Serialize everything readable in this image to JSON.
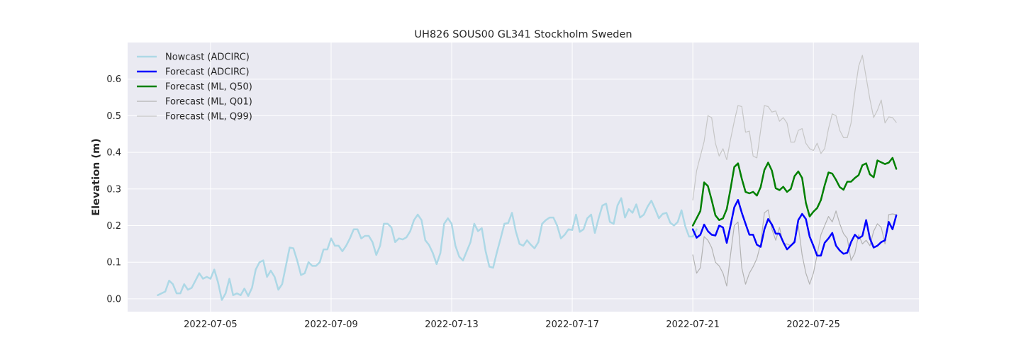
{
  "chart_data": {
    "type": "line",
    "title": "UH826 SOUS00 GL341 Stockholm Sweden",
    "xlabel": "",
    "ylabel": "Elevation (m)",
    "xlim": [
      "2022-07-02T06:00",
      "2022-07-28T12:00"
    ],
    "ylim": [
      -0.035,
      0.7
    ],
    "x_ticks": [
      "2022-07-05",
      "2022-07-09",
      "2022-07-13",
      "2022-07-17",
      "2022-07-21",
      "2022-07-25"
    ],
    "y_ticks": [
      0.0,
      0.1,
      0.2,
      0.3,
      0.4,
      0.5,
      0.6
    ],
    "y_tick_labels": [
      "0.0",
      "0.1",
      "0.2",
      "0.3",
      "0.4",
      "0.5",
      "0.6"
    ],
    "grid": true,
    "legend_position": "top-left",
    "background_color": "#eaeaf2",
    "series": [
      {
        "name": "Nowcast (ADCIRC)",
        "color": "#add8e6",
        "x_start": "2022-07-03T06:00",
        "x_step_hours": 3,
        "values": [
          0.01,
          0.015,
          0.02,
          0.05,
          0.04,
          0.015,
          0.015,
          0.04,
          0.025,
          0.03,
          0.05,
          0.07,
          0.055,
          0.06,
          0.055,
          0.08,
          0.045,
          -0.003,
          0.015,
          0.055,
          0.01,
          0.015,
          0.01,
          0.028,
          0.008,
          0.03,
          0.08,
          0.1,
          0.105,
          0.06,
          0.077,
          0.06,
          0.025,
          0.04,
          0.09,
          0.14,
          0.138,
          0.105,
          0.065,
          0.07,
          0.1,
          0.09,
          0.09,
          0.1,
          0.135,
          0.135,
          0.165,
          0.145,
          0.145,
          0.13,
          0.145,
          0.165,
          0.19,
          0.19,
          0.165,
          0.172,
          0.172,
          0.155,
          0.12,
          0.145,
          0.205,
          0.205,
          0.195,
          0.155,
          0.165,
          0.162,
          0.168,
          0.185,
          0.215,
          0.23,
          0.215,
          0.16,
          0.147,
          0.125,
          0.095,
          0.125,
          0.205,
          0.22,
          0.205,
          0.145,
          0.115,
          0.105,
          0.13,
          0.155,
          0.205,
          0.185,
          0.193,
          0.13,
          0.088,
          0.085,
          0.127,
          0.165,
          0.205,
          0.207,
          0.235,
          0.185,
          0.15,
          0.145,
          0.16,
          0.148,
          0.138,
          0.155,
          0.205,
          0.215,
          0.222,
          0.222,
          0.2,
          0.165,
          0.175,
          0.19,
          0.188,
          0.23,
          0.183,
          0.19,
          0.22,
          0.23,
          0.18,
          0.22,
          0.255,
          0.26,
          0.21,
          0.205,
          0.255,
          0.275,
          0.222,
          0.245,
          0.235,
          0.258,
          0.222,
          0.23,
          0.252,
          0.268,
          0.245,
          0.22,
          0.232,
          0.235,
          0.208,
          0.2,
          0.21,
          0.242,
          0.198,
          0.17,
          0.17,
          0.19
        ]
      },
      {
        "name": "Forecast (ADCIRC)",
        "color": "#0000ff",
        "x_start": "2022-07-21T00:00",
        "x_step_hours": 3,
        "values": [
          0.19,
          0.167,
          0.175,
          0.203,
          0.185,
          0.175,
          0.173,
          0.2,
          0.195,
          0.153,
          0.2,
          0.25,
          0.27,
          0.235,
          0.205,
          0.175,
          0.175,
          0.148,
          0.142,
          0.19,
          0.218,
          0.203,
          0.178,
          0.178,
          0.155,
          0.135,
          0.145,
          0.155,
          0.215,
          0.232,
          0.218,
          0.17,
          0.145,
          0.118,
          0.118,
          0.153,
          0.165,
          0.18,
          0.145,
          0.132,
          0.123,
          0.126,
          0.155,
          0.175,
          0.165,
          0.172,
          0.215,
          0.165,
          0.14,
          0.145,
          0.155,
          0.16,
          0.21,
          0.19,
          0.228
        ]
      },
      {
        "name": "Forecast (ML, Q50)",
        "color": "#008000",
        "x_start": "2022-07-21T00:00",
        "x_step_hours": 3,
        "values": [
          0.2,
          0.22,
          0.24,
          0.318,
          0.308,
          0.27,
          0.228,
          0.215,
          0.22,
          0.245,
          0.3,
          0.36,
          0.37,
          0.328,
          0.292,
          0.288,
          0.292,
          0.282,
          0.305,
          0.352,
          0.372,
          0.35,
          0.302,
          0.297,
          0.306,
          0.292,
          0.3,
          0.335,
          0.348,
          0.33,
          0.262,
          0.225,
          0.238,
          0.248,
          0.27,
          0.31,
          0.345,
          0.342,
          0.325,
          0.305,
          0.298,
          0.32,
          0.32,
          0.33,
          0.338,
          0.365,
          0.37,
          0.34,
          0.332,
          0.378,
          0.373,
          0.368,
          0.372,
          0.385,
          0.355
        ]
      },
      {
        "name": "Forecast (ML, Q01)",
        "color": "#b3b3b3",
        "x_start": "2022-07-21T00:00",
        "x_step_hours": 3,
        "values": [
          0.12,
          0.07,
          0.085,
          0.17,
          0.16,
          0.14,
          0.1,
          0.09,
          0.07,
          0.035,
          0.12,
          0.2,
          0.21,
          0.085,
          0.04,
          0.07,
          0.088,
          0.11,
          0.15,
          0.235,
          0.243,
          0.19,
          0.16,
          0.195,
          0.15,
          0.15,
          0.145,
          0.16,
          0.2,
          0.12,
          0.07,
          0.04,
          0.07,
          0.12,
          0.175,
          0.2,
          0.225,
          0.21,
          0.24,
          0.205,
          0.178,
          0.165,
          0.105,
          0.125,
          0.175,
          0.15,
          0.16,
          0.145,
          0.185,
          0.205,
          0.195,
          0.15,
          0.23,
          0.232,
          0.23
        ]
      },
      {
        "name": "Forecast (ML, Q99)",
        "color": "#c6c6c6",
        "x_start": "2022-07-21T00:00",
        "x_step_hours": 3,
        "values": [
          0.27,
          0.35,
          0.39,
          0.43,
          0.5,
          0.495,
          0.425,
          0.39,
          0.41,
          0.38,
          0.435,
          0.485,
          0.528,
          0.525,
          0.455,
          0.458,
          0.39,
          0.385,
          0.46,
          0.528,
          0.525,
          0.51,
          0.513,
          0.485,
          0.495,
          0.48,
          0.428,
          0.428,
          0.46,
          0.465,
          0.425,
          0.41,
          0.405,
          0.425,
          0.397,
          0.41,
          0.465,
          0.505,
          0.5,
          0.46,
          0.44,
          0.44,
          0.48,
          0.565,
          0.635,
          0.665,
          0.605,
          0.545,
          0.495,
          0.515,
          0.543,
          0.48,
          0.497,
          0.495,
          0.482
        ]
      }
    ]
  }
}
